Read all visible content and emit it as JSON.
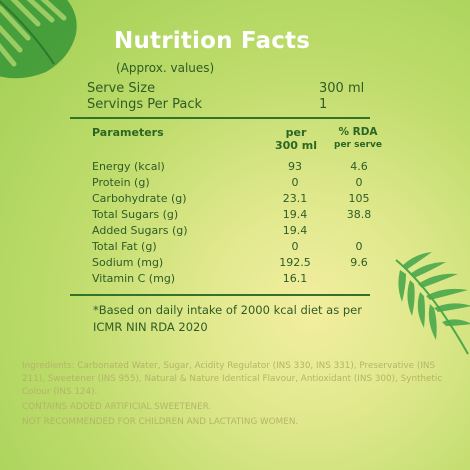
{
  "header": {
    "title": "Nutrition  Facts",
    "subtitle": "(Approx. values)"
  },
  "serving": {
    "size_label": "Serve Size",
    "size_value": "300 ml",
    "servings_label": "Servings Per Pack",
    "servings_value": "1"
  },
  "table": {
    "col_params": "Parameters",
    "col_per_line1": "per",
    "col_per_line2": "300 ml",
    "col_rda_line1": "% RDA",
    "col_rda_line2": "per serve",
    "rows": [
      {
        "name": "Energy (kcal)",
        "amount": "93",
        "rda": "4.6"
      },
      {
        "name": "Protein (g)",
        "amount": "0",
        "rda": "0"
      },
      {
        "name": "Carbohydrate (g)",
        "amount": "23.1",
        "rda": "105"
      },
      {
        "name": "Total Sugars (g)",
        "amount": "19.4",
        "rda": "38.8"
      },
      {
        "name": "Added Sugars (g)",
        "amount": "19.4",
        "rda": ""
      },
      {
        "name": "Total Fat (g)",
        "amount": "0",
        "rda": "0"
      },
      {
        "name": "Sodium (mg)",
        "amount": "192.5",
        "rda": "9.6"
      },
      {
        "name": "Vitamin C (mg)",
        "amount": "16.1",
        "rda": ""
      }
    ]
  },
  "footnote": {
    "line1": "*Based on daily intake of 2000 kcal diet as per",
    "line2": "ICMR NIN RDA 2020"
  },
  "ingredients": {
    "text": "Ingredients: Carbonated Water, Sugar, Acidity Regulator (INS 330, INS 331), Preservative (INS 211), Sweetener (INS 955), Natural & Nature Identical Flavour, Antioxidant (INS 300), Synthetic Colour (INS 124).",
    "warning1": "CONTAINS ADDED ARTIFICIAL SWEETENER.",
    "warning2": "NOT RECOMMENDED FOR CHILDREN AND LACTATING WOMEN."
  },
  "colors": {
    "accent_green": "#33722a",
    "text_green": "#2e5c26",
    "leaf_green": "#3f9a3a"
  }
}
